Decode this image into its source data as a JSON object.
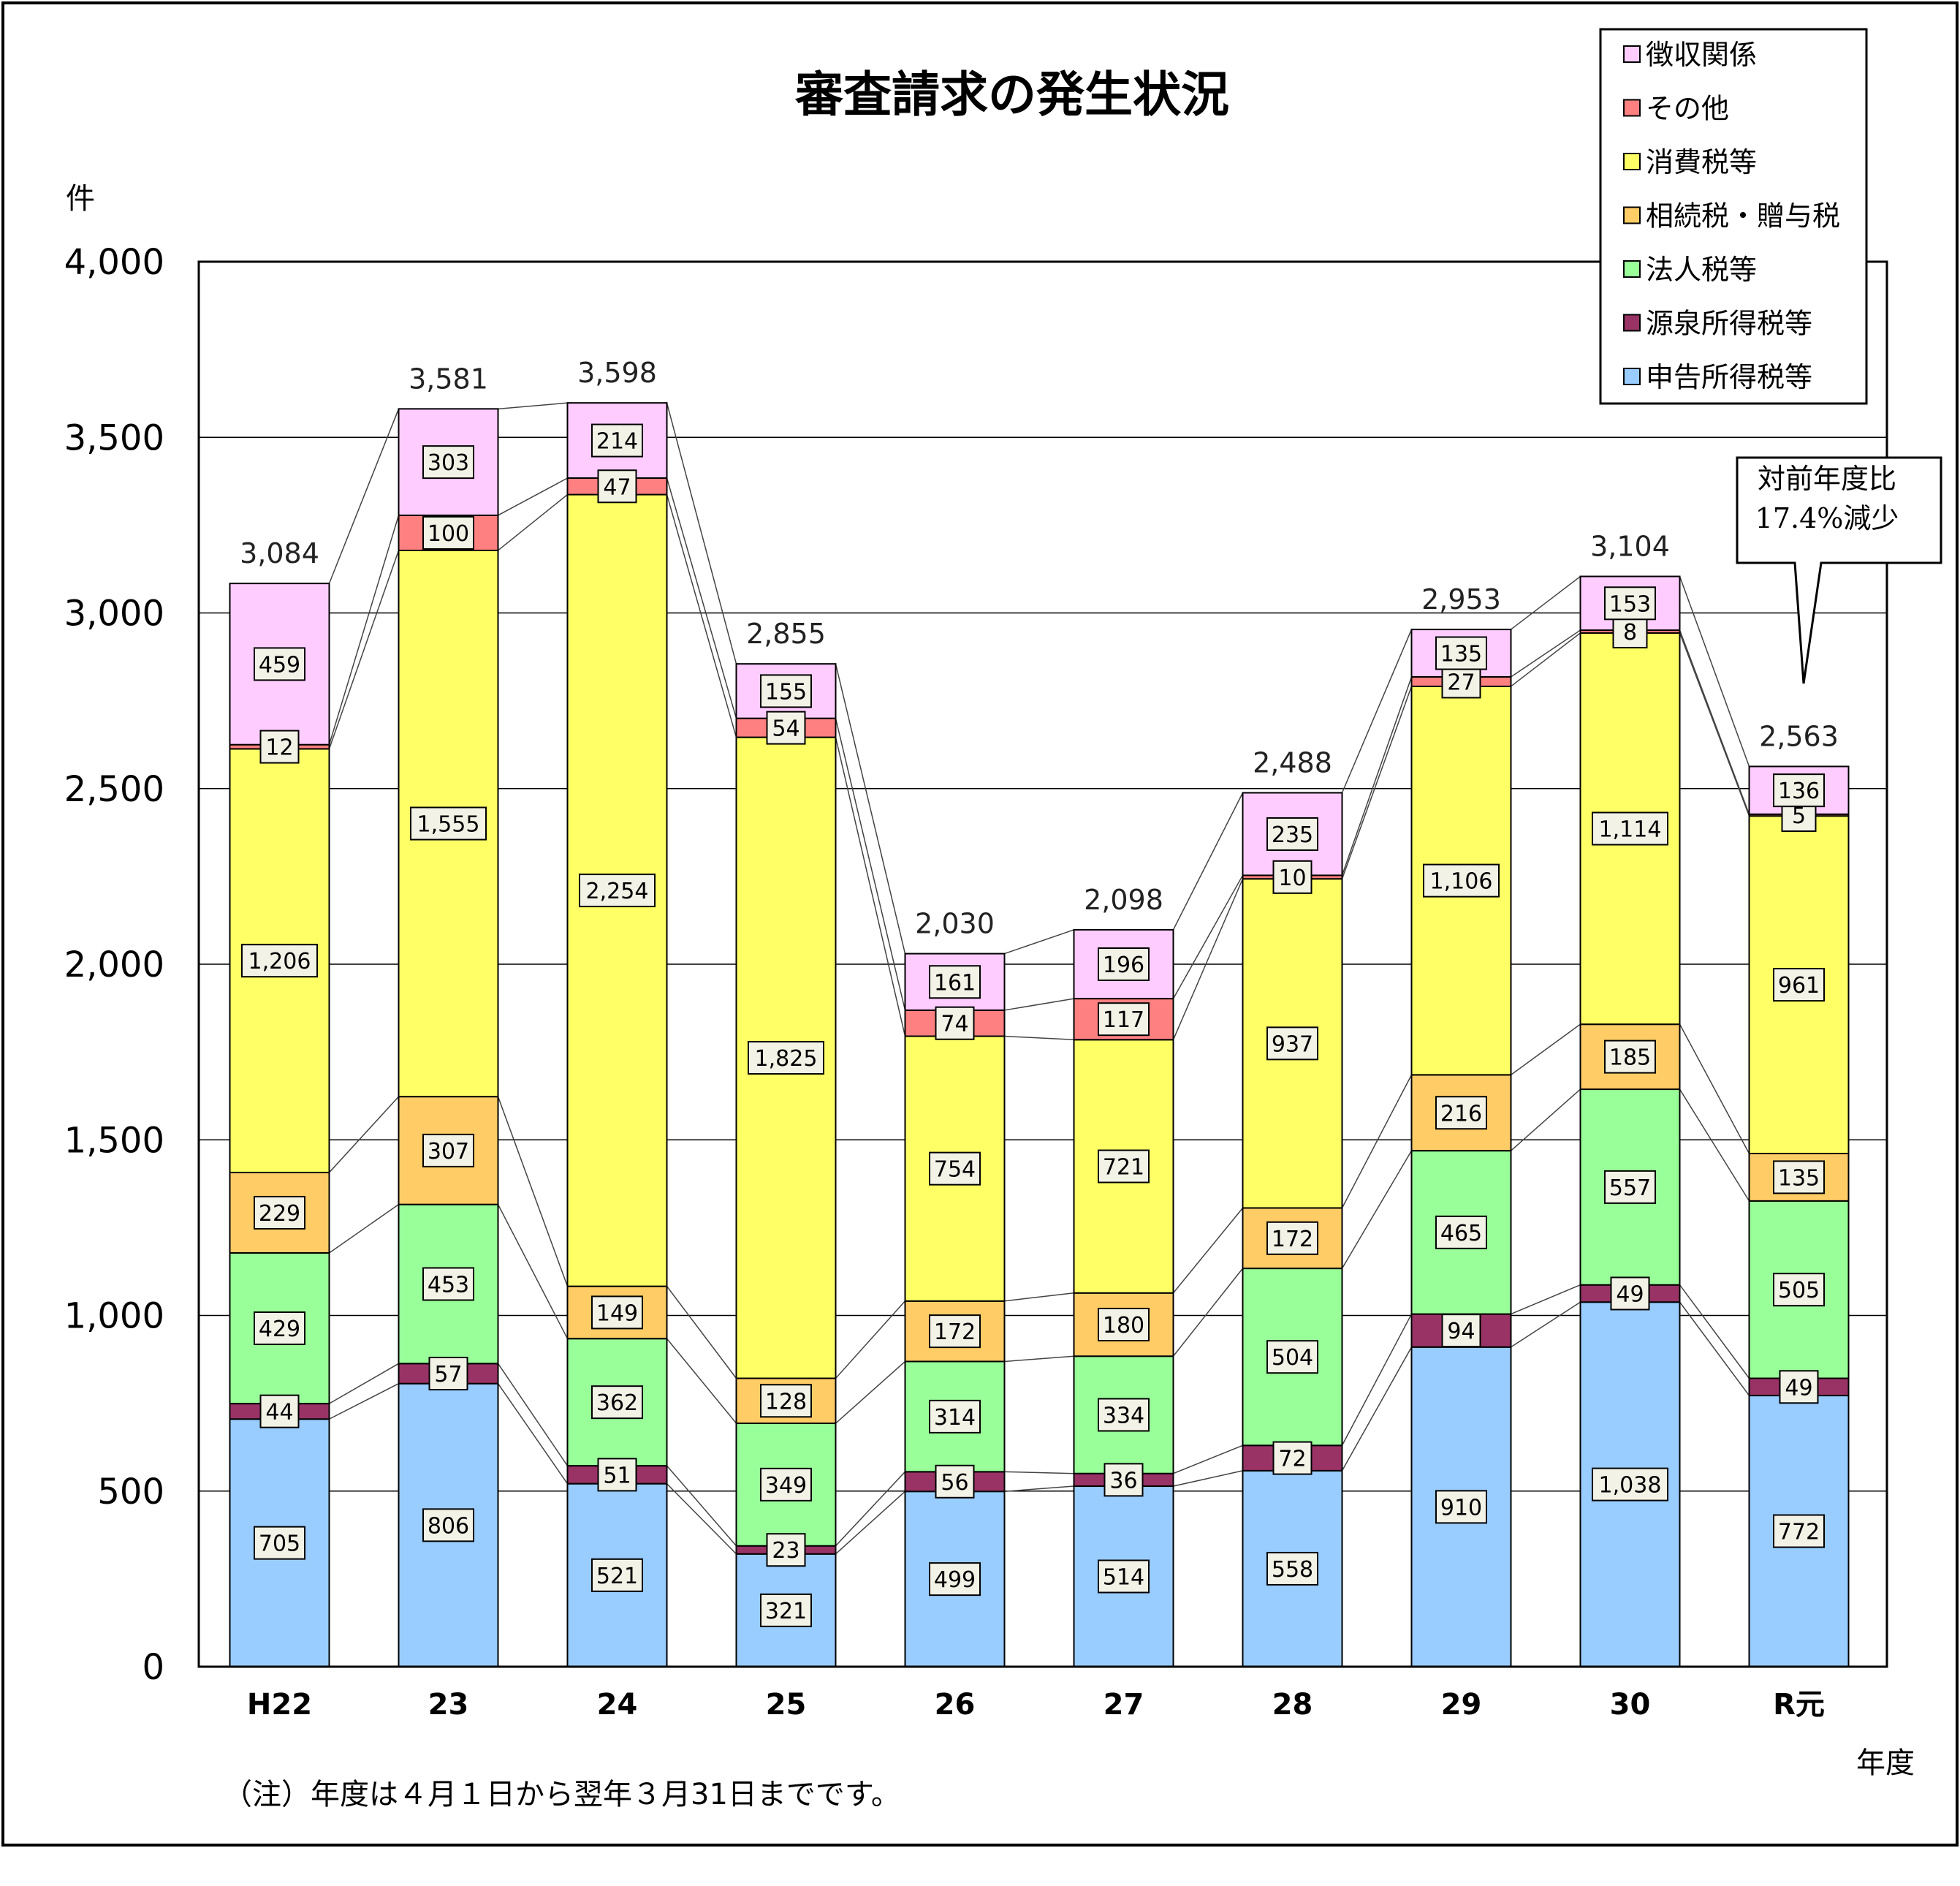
{
  "chart_data": {
    "type": "bar",
    "stacked": true,
    "title": "審査請求の発生状況",
    "ylabel": "件",
    "xlabel": "年度",
    "ylim": [
      0,
      4000
    ],
    "yticks": [
      0,
      500,
      1000,
      1500,
      2000,
      2500,
      3000,
      3500,
      4000
    ],
    "ytick_labels": [
      "0",
      "500",
      "1,000",
      "1,500",
      "2,000",
      "2,500",
      "3,000",
      "3,500",
      "4,000"
    ],
    "grid": true,
    "legend_position": "top-right",
    "categories": [
      "H22",
      "23",
      "24",
      "25",
      "26",
      "27",
      "28",
      "29",
      "30",
      "R元"
    ],
    "series": [
      {
        "name": "申告所得税等",
        "color": "#99ccff",
        "values": [
          705,
          806,
          521,
          321,
          499,
          514,
          558,
          910,
          1038,
          772
        ],
        "labels": [
          "705",
          "806",
          "521",
          "321",
          "499",
          "514",
          "558",
          "910",
          "1,038",
          "772"
        ]
      },
      {
        "name": "源泉所得税等",
        "color": "#993366",
        "values": [
          44,
          57,
          51,
          23,
          56,
          36,
          72,
          94,
          49,
          49
        ],
        "labels": [
          "44",
          "57",
          "51",
          "23",
          "56",
          "36",
          "72",
          "94",
          "49",
          "49"
        ]
      },
      {
        "name": "法人税等",
        "color": "#99ff99",
        "values": [
          429,
          453,
          362,
          349,
          314,
          334,
          504,
          465,
          557,
          505
        ],
        "labels": [
          "429",
          "453",
          "362",
          "349",
          "314",
          "334",
          "504",
          "465",
          "557",
          "505"
        ]
      },
      {
        "name": "相続税・贈与税",
        "color": "#ffcc66",
        "values": [
          229,
          307,
          149,
          128,
          172,
          180,
          172,
          216,
          185,
          135
        ],
        "labels": [
          "229",
          "307",
          "149",
          "128",
          "172",
          "180",
          "172",
          "216",
          "185",
          "135"
        ]
      },
      {
        "name": "消費税等",
        "color": "#ffff66",
        "values": [
          1206,
          1555,
          2254,
          1825,
          754,
          721,
          937,
          1106,
          1114,
          961
        ],
        "labels": [
          "1,206",
          "1,555",
          "2,254",
          "1,825",
          "754",
          "721",
          "937",
          "1,106",
          "1,114",
          "961"
        ]
      },
      {
        "name": "その他",
        "color": "#ff8080",
        "values": [
          12,
          100,
          47,
          54,
          74,
          117,
          10,
          27,
          8,
          5
        ],
        "labels": [
          "12",
          "100",
          "47",
          "54",
          "74",
          "117",
          "10",
          "27",
          "8",
          "5"
        ]
      },
      {
        "name": "徴収関係",
        "color": "#ffccff",
        "values": [
          459,
          303,
          214,
          155,
          161,
          196,
          235,
          135,
          153,
          136
        ],
        "labels": [
          "459",
          "303",
          "214",
          "155",
          "161",
          "196",
          "235",
          "135",
          "153",
          "136"
        ]
      }
    ],
    "totals": [
      "3,084",
      "3,581",
      "3,598",
      "2,855",
      "2,030",
      "2,098",
      "2,488",
      "2,953",
      "3,104",
      "2,563"
    ],
    "legend_order": [
      "徴収関係",
      "その他",
      "消費税等",
      "相続税・贈与税",
      "法人税等",
      "源泉所得税等",
      "申告所得税等"
    ],
    "callout": {
      "lines": [
        "対前年度比",
        "17.4%減少"
      ]
    },
    "note": "（注）年度は４月１日から翌年３月31日までです。"
  }
}
